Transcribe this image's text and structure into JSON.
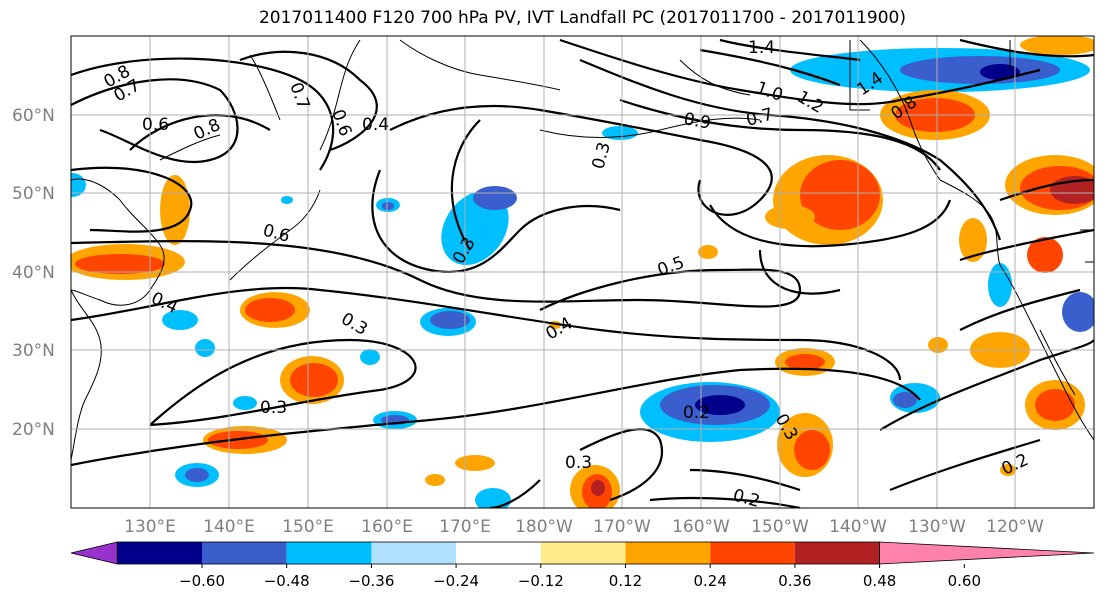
{
  "title": "2017011400 F120 700 hPa PV, IVT Landfall PC (2017011700 - 2017011900)",
  "lat_labels": [
    "60°N",
    "50°N",
    "40°N",
    "30°N",
    "20°N"
  ],
  "lon_labels": [
    "130°E",
    "140°E",
    "150°E",
    "160°E",
    "170°E",
    "180°W",
    "170°W",
    "160°W",
    "150°W",
    "140°W",
    "130°W",
    "120°W"
  ],
  "colorbar": {
    "ticks": [
      "−0.60",
      "−0.48",
      "−0.36",
      "−0.24",
      "−0.12",
      "0.12",
      "0.24",
      "0.36",
      "0.48",
      "0.60"
    ],
    "colors": [
      "#9932cc",
      "#00008b",
      "#3a5fcd",
      "#00bfff",
      "#b0e2ff",
      "#ffffff",
      "#ffec8b",
      "#ffa500",
      "#ff4500",
      "#b22222",
      "#ff82ab"
    ]
  },
  "contour_labels": [
    "0.8",
    "0.7",
    "0.6",
    "0.8",
    "0.7",
    "0.6",
    "0.4",
    "1.4",
    "1.0",
    "1.2",
    "0.9",
    "0.7",
    "1.4",
    "0.8",
    "0.3",
    "0.3",
    "0.6",
    "0.5",
    "0.4",
    "0.4",
    "0.3",
    "0.3",
    "0.2",
    "0.3",
    "0.3",
    "0.2",
    "0.2"
  ],
  "colors": {
    "grid": "#b0b0b0",
    "contour": "#000000",
    "coast": "#000000"
  }
}
